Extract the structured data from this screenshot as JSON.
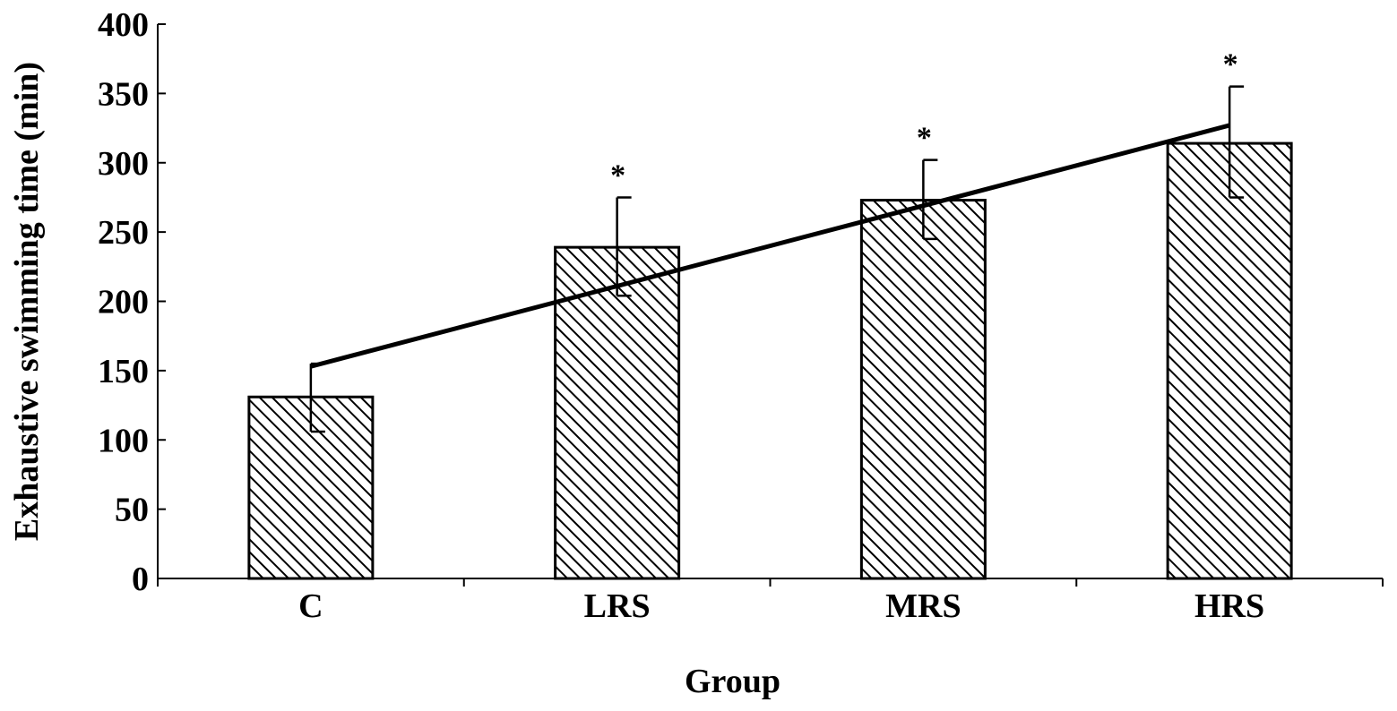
{
  "chart_data": {
    "type": "bar",
    "title": "",
    "xlabel": "Group",
    "ylabel": "Exhaustive swimming time (min)",
    "ylim": [
      0,
      400
    ],
    "yticks": [
      "0",
      "50",
      "100",
      "150",
      "200",
      "250",
      "300",
      "350",
      "400"
    ],
    "categories": [
      "C",
      "LRS",
      "MRS",
      "HRS"
    ],
    "values": [
      131,
      239,
      273,
      314
    ],
    "error_upper": [
      24,
      36,
      29,
      41
    ],
    "error_lower": [
      25,
      35,
      28,
      39
    ],
    "significance": [
      "",
      "*",
      "*",
      "*"
    ],
    "trend_line": {
      "start": 153,
      "end": 327
    },
    "bar_pattern": "diagonal-hatch",
    "grid": false,
    "legend": "none",
    "colors": {
      "bar_fill": "#ffffff",
      "hatch": "#000000",
      "stroke": "#000000"
    }
  }
}
